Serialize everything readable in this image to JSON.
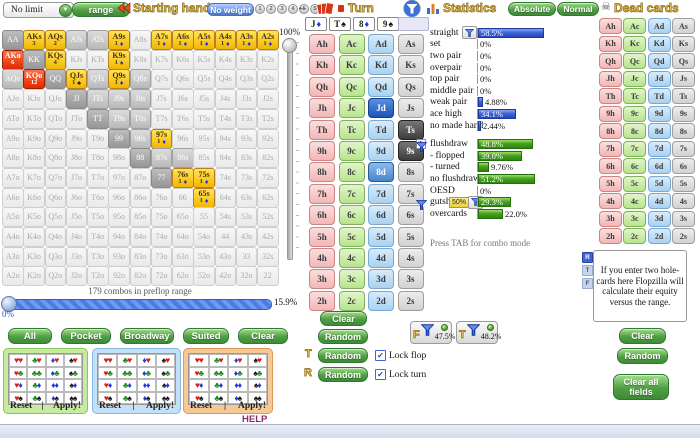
{
  "toolbar": {
    "game_select": "No limit",
    "range_button": "range",
    "starting_hand_label": "Starting hand",
    "no_weight_button": "No weight",
    "weight_buttons": [
      "1",
      "2",
      "3",
      "4",
      "5",
      "S"
    ],
    "turn_label": "Turn",
    "statistics_label": "Statistics",
    "absolute_button": "Absolute",
    "normal_button": "Normal",
    "dead_cards_label": "Dead cards"
  },
  "suits": {
    "order": [
      "h",
      "c",
      "d",
      "s"
    ],
    "symbols": {
      "h": "♥",
      "c": "♣",
      "d": "♦",
      "s": "♠"
    },
    "colors": {
      "h": "#d42222",
      "c": "#1d8a1d",
      "d": "#2038e0",
      "s": "#151515"
    }
  },
  "ranks": [
    "A",
    "K",
    "Q",
    "J",
    "T",
    "9",
    "8",
    "7",
    "6",
    "5",
    "4",
    "3",
    "2"
  ],
  "board": {
    "cards": [
      {
        "rank": "J",
        "suit": "d"
      },
      {
        "rank": "T",
        "suit": "s"
      },
      {
        "rank": "8",
        "suit": "d"
      },
      {
        "rank": "9",
        "suit": "s"
      }
    ]
  },
  "range_grid": {
    "yellow_cells": {
      "AKs": {
        "count": "3"
      },
      "AQs": {
        "count": "2"
      },
      "A9s": {
        "count": "1",
        "suit": "d"
      },
      "A7s": {
        "count": "1",
        "suit": "d"
      },
      "A6s": {
        "count": "1",
        "suit": "d"
      },
      "A5s": {
        "count": "1",
        "suit": "d"
      },
      "A4s": {
        "count": "1",
        "suit": "d"
      },
      "A3s": {
        "count": "1",
        "suit": "d"
      },
      "A2s": {
        "count": "1",
        "suit": "d"
      },
      "KQs": {
        "count": "4"
      },
      "K9s": {
        "count": "1",
        "suit": "d"
      },
      "QJs": {
        "count": "1",
        "suit": "s"
      },
      "Q9s": {
        "count": "1",
        "suit": "d"
      },
      "97s": {
        "count": "1",
        "suit": "d"
      },
      "76s": {
        "count": "1",
        "suit": "d"
      },
      "75s": {
        "count": "1",
        "suit": "d"
      },
      "65s": {
        "count": "1",
        "suit": "d"
      }
    },
    "red_cells": {
      "AKo": {
        "count": "6"
      },
      "KQo": {
        "count": "12"
      }
    },
    "dark_cells": [
      "AA",
      "KK",
      "QQ",
      "JJ",
      "TT",
      "99",
      "88",
      "77"
    ],
    "medium_cells": [
      "AJs",
      "ATs",
      "AQo",
      "QTs",
      "Q8s",
      "JTs",
      "J9s",
      "J8s",
      "T9s",
      "T8s",
      "98s",
      "87s",
      "86s"
    ],
    "footer_text": "179 combos in preflop range",
    "weight_slider_label": "100%",
    "range_slider_value": "15.9%",
    "range_slider_min": "0%"
  },
  "card_matrix": {
    "selected": {
      "Jd": "c-bluedark",
      "8d": "c-bluemid",
      "Ts": "c-graydark",
      "9s": "c-graydark"
    },
    "turn_card": "9s",
    "turn_badge": "T",
    "clear_button": "Clear",
    "random_button": "Random",
    "turn_row": {
      "label": "T",
      "button": "Random",
      "checkbox_label": "Lock flop",
      "checked": "✔"
    },
    "river_row": {
      "label": "R",
      "button": "Random",
      "checkbox_label": "Lock turn",
      "checked": "✔"
    }
  },
  "filter_summary": [
    {
      "letter": "F",
      "value": "47.5%"
    },
    {
      "letter": "T",
      "value": "48.2%"
    }
  ],
  "statistics": {
    "made_hands": [
      {
        "label": "straight",
        "value": "58.5%",
        "pct": 58.5,
        "bar_funnel": true
      },
      {
        "label": "set",
        "value": "0%",
        "pct": 0
      },
      {
        "label": "two pair",
        "value": "0%",
        "pct": 0
      },
      {
        "label": "overpair",
        "value": "0%",
        "pct": 0
      },
      {
        "label": "top pair",
        "value": "0%",
        "pct": 0
      },
      {
        "label": "middle pair",
        "value": "0%",
        "pct": 0
      },
      {
        "label": "weak pair",
        "value": "4.88%",
        "pct": 4.88
      },
      {
        "label": "ace high",
        "value": "34.1%",
        "pct": 34.1
      },
      {
        "label": "no made hand",
        "value": "2.44%",
        "pct": 2.44
      }
    ],
    "draws": [
      {
        "label": "flushdraw",
        "value": "48.8%",
        "pct": 48.8,
        "label_funnel": true
      },
      {
        "label": "- flopped",
        "value": "39.0%",
        "pct": 39.0
      },
      {
        "label": "- turned",
        "value": "9.76%",
        "pct": 9.76
      },
      {
        "label": "no flushdraw",
        "value": "51.2%",
        "pct": 51.2
      },
      {
        "label": "OESD",
        "value": "0%",
        "pct": 0
      },
      {
        "label": "gutshot",
        "value": "29.3%",
        "pct": 29.3,
        "label_funnel": true,
        "weight_badge": "50%",
        "bar_funnel": true
      },
      {
        "label": "overcards",
        "value": "22.0%",
        "pct": 22.0
      }
    ],
    "hint": "Press TAB for combo mode"
  },
  "equity_panel": {
    "mini_badges": [
      "R",
      "T",
      "F"
    ],
    "info_text": "If you enter two hole-cards here Flopzilla will calculate their equity versus the range.",
    "clear_button": "Clear",
    "random_button": "Random",
    "clear_all_button": "Clear all fields"
  },
  "bottom_bar": {
    "buttons": [
      "All",
      "Pocket",
      "Broadway",
      "Suited",
      "Clear"
    ],
    "panels": [
      {
        "color": "green",
        "reset": "Reset",
        "sep": "|",
        "apply": "Apply!"
      },
      {
        "color": "blue",
        "reset": "Reset",
        "sep": "|",
        "apply": "Apply!"
      },
      {
        "color": "orange",
        "reset": "Reset",
        "sep": "|",
        "apply": "Apply!"
      }
    ],
    "help_label": "HELP"
  }
}
